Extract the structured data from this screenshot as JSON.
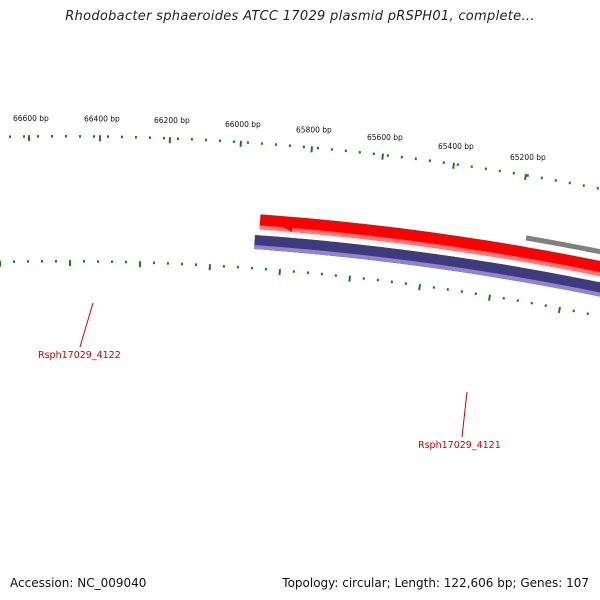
{
  "title": "Rhodobacter sphaeroides ATCC 17029 plasmid pRSPH01, complete...",
  "footer": {
    "accession": "Accession: NC_009040",
    "summary": "Topology: circular; Length: 122,606 bp; Genes: 107"
  },
  "colors": {
    "backbone": "#808080",
    "forward_gene": "#ff0000",
    "forward_gene_highlight": "#ff7a7a",
    "reverse_gene": "#3f3a80",
    "reverse_gene_highlight": "#8f88c8",
    "tick": "#1a7a1a",
    "tick_label": "#111111",
    "gene_label": "#cc0000"
  },
  "scale_labels": [
    "66600 bp",
    "66400 bp",
    "66200 bp",
    "66000 bp",
    "65800 bp",
    "65600 bp",
    "65400 bp",
    "65200 bp"
  ],
  "genes": [
    {
      "name": "Rsph17029_4122",
      "strand": "forward"
    },
    {
      "name": "Rsph17029_4121",
      "strand": "reverse"
    }
  ]
}
